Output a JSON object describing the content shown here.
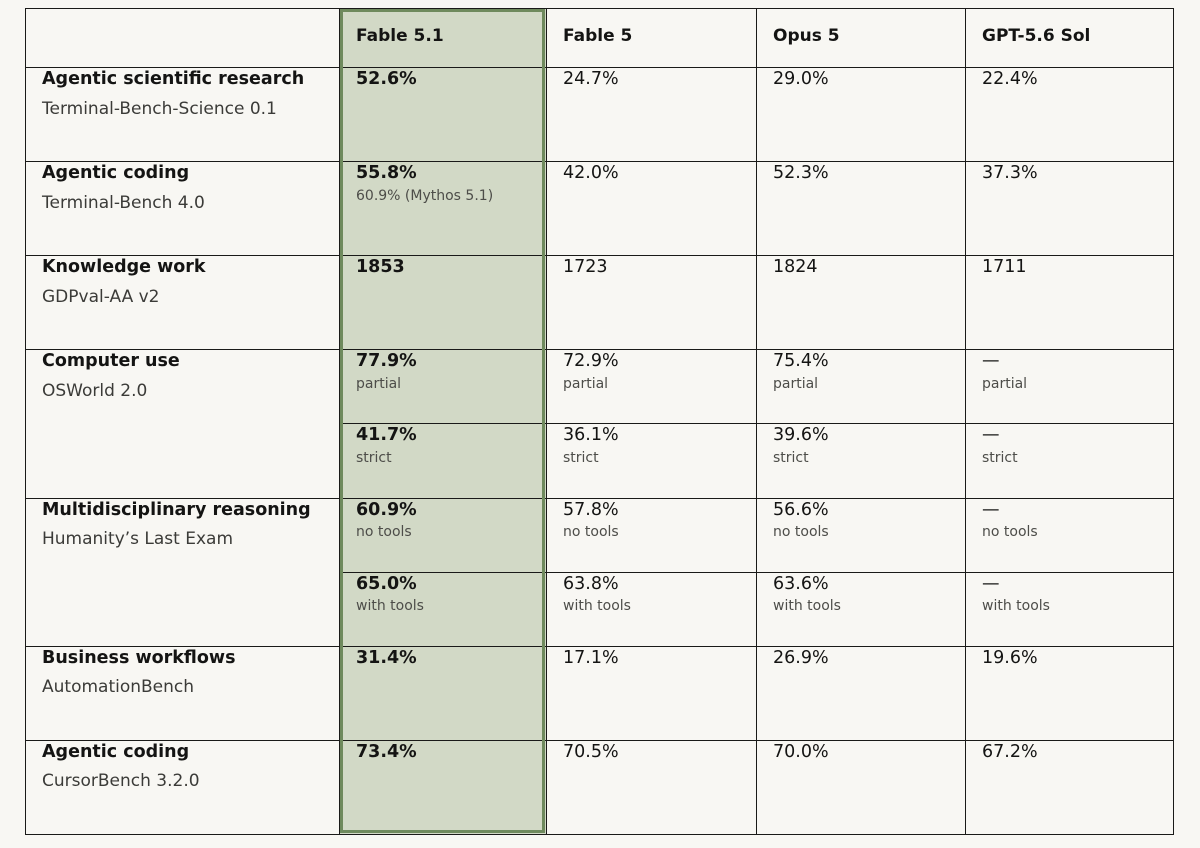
{
  "columns": [
    "",
    "Fable 5.1",
    "Fable 5",
    "Opus 5",
    "GPT-5.6 Sol"
  ],
  "rows": [
    {
      "category": "Agentic scientific research",
      "benchmark": "Terminal-Bench-Science 0.1",
      "cells": [
        {
          "value": "52.6%",
          "note": ""
        },
        {
          "value": "24.7%",
          "note": ""
        },
        {
          "value": "29.0%",
          "note": ""
        },
        {
          "value": "22.4%",
          "note": ""
        }
      ]
    },
    {
      "category": "Agentic coding",
      "benchmark": "Terminal-Bench 4.0",
      "cells": [
        {
          "value": "55.8%",
          "note": "60.9% (Mythos 5.1)"
        },
        {
          "value": "42.0%",
          "note": ""
        },
        {
          "value": "52.3%",
          "note": ""
        },
        {
          "value": "37.3%",
          "note": ""
        }
      ]
    },
    {
      "category": "Knowledge work",
      "benchmark": "GDPval-AA v2",
      "cells": [
        {
          "value": "1853",
          "note": ""
        },
        {
          "value": "1723",
          "note": ""
        },
        {
          "value": "1824",
          "note": ""
        },
        {
          "value": "1711",
          "note": ""
        }
      ]
    },
    {
      "category": "Computer use",
      "benchmark": "OSWorld 2.0",
      "subrows": [
        [
          {
            "value": "77.9%",
            "note": "partial"
          },
          {
            "value": "72.9%",
            "note": "partial"
          },
          {
            "value": "75.4%",
            "note": "partial"
          },
          {
            "value": "—",
            "note": "partial"
          }
        ],
        [
          {
            "value": "41.7%",
            "note": "strict"
          },
          {
            "value": "36.1%",
            "note": "strict"
          },
          {
            "value": "39.6%",
            "note": "strict"
          },
          {
            "value": "—",
            "note": "strict"
          }
        ]
      ]
    },
    {
      "category": "Multidisciplinary reasoning",
      "benchmark": "Humanity’s Last Exam",
      "subrows": [
        [
          {
            "value": "60.9%",
            "note": "no tools"
          },
          {
            "value": "57.8%",
            "note": "no tools"
          },
          {
            "value": "56.6%",
            "note": "no tools"
          },
          {
            "value": "—",
            "note": "no tools"
          }
        ],
        [
          {
            "value": "65.0%",
            "note": "with tools"
          },
          {
            "value": "63.8%",
            "note": "with tools"
          },
          {
            "value": "63.6%",
            "note": "with tools"
          },
          {
            "value": "—",
            "note": "with tools"
          }
        ]
      ]
    },
    {
      "category": "Business workflows",
      "benchmark": "AutomationBench",
      "cells": [
        {
          "value": "31.4%",
          "note": ""
        },
        {
          "value": "17.1%",
          "note": ""
        },
        {
          "value": "26.9%",
          "note": ""
        },
        {
          "value": "19.6%",
          "note": ""
        }
      ]
    },
    {
      "category": "Agentic coding",
      "benchmark": "CursorBench 3.2.0",
      "cells": [
        {
          "value": "73.4%",
          "note": ""
        },
        {
          "value": "70.5%",
          "note": ""
        },
        {
          "value": "70.0%",
          "note": ""
        },
        {
          "value": "67.2%",
          "note": ""
        }
      ]
    }
  ],
  "colors": {
    "background": "#f8f7f3",
    "highlight_fill": "#d2d9c6",
    "highlight_border": "#6f8a5d",
    "grid": "#1a1a18"
  }
}
